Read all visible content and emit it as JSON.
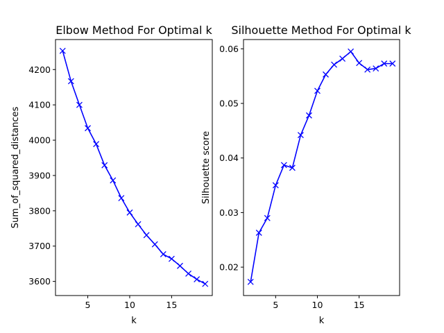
{
  "chart_data": [
    {
      "type": "line",
      "title": "Elbow Method For Optimal k",
      "xlabel": "k",
      "ylabel": "Sum_of_squared_distances",
      "xlim": [
        1.15,
        19.85
      ],
      "ylim": [
        3560,
        4285
      ],
      "xticks": [
        5,
        10,
        15
      ],
      "yticks": [
        3600,
        3700,
        3800,
        3900,
        4000,
        4100,
        4200
      ],
      "grid": false,
      "color": "#0000ff",
      "marker": "x",
      "x": [
        2,
        3,
        4,
        5,
        6,
        7,
        8,
        9,
        10,
        11,
        12,
        13,
        14,
        15,
        16,
        17,
        18,
        19
      ],
      "y": [
        4253,
        4167,
        4100,
        4034,
        3989,
        3929,
        3886,
        3836,
        3795,
        3762,
        3731,
        3705,
        3677,
        3664,
        3644,
        3622,
        3606,
        3593
      ]
    },
    {
      "type": "line",
      "title": "Silhouette Method For Optimal k",
      "xlabel": "k",
      "ylabel": "Silhouette score",
      "xlim": [
        1.15,
        19.85
      ],
      "ylim": [
        0.0148,
        0.0617
      ],
      "xticks": [
        5,
        10,
        15
      ],
      "yticks": [
        0.02,
        0.03,
        0.04,
        0.05,
        0.06
      ],
      "yticklabels": [
        "0.02",
        "0.03",
        "0.04",
        "0.05",
        "0.06"
      ],
      "grid": false,
      "color": "#0000ff",
      "marker": "x",
      "x": [
        2,
        3,
        4,
        5,
        6,
        7,
        8,
        9,
        10,
        11,
        12,
        13,
        14,
        15,
        16,
        17,
        18,
        19
      ],
      "y": [
        0.0173,
        0.0263,
        0.029,
        0.035,
        0.0387,
        0.0382,
        0.0442,
        0.0478,
        0.0523,
        0.0553,
        0.0571,
        0.0582,
        0.0595,
        0.0574,
        0.0562,
        0.0564,
        0.0573,
        0.0573
      ]
    }
  ]
}
